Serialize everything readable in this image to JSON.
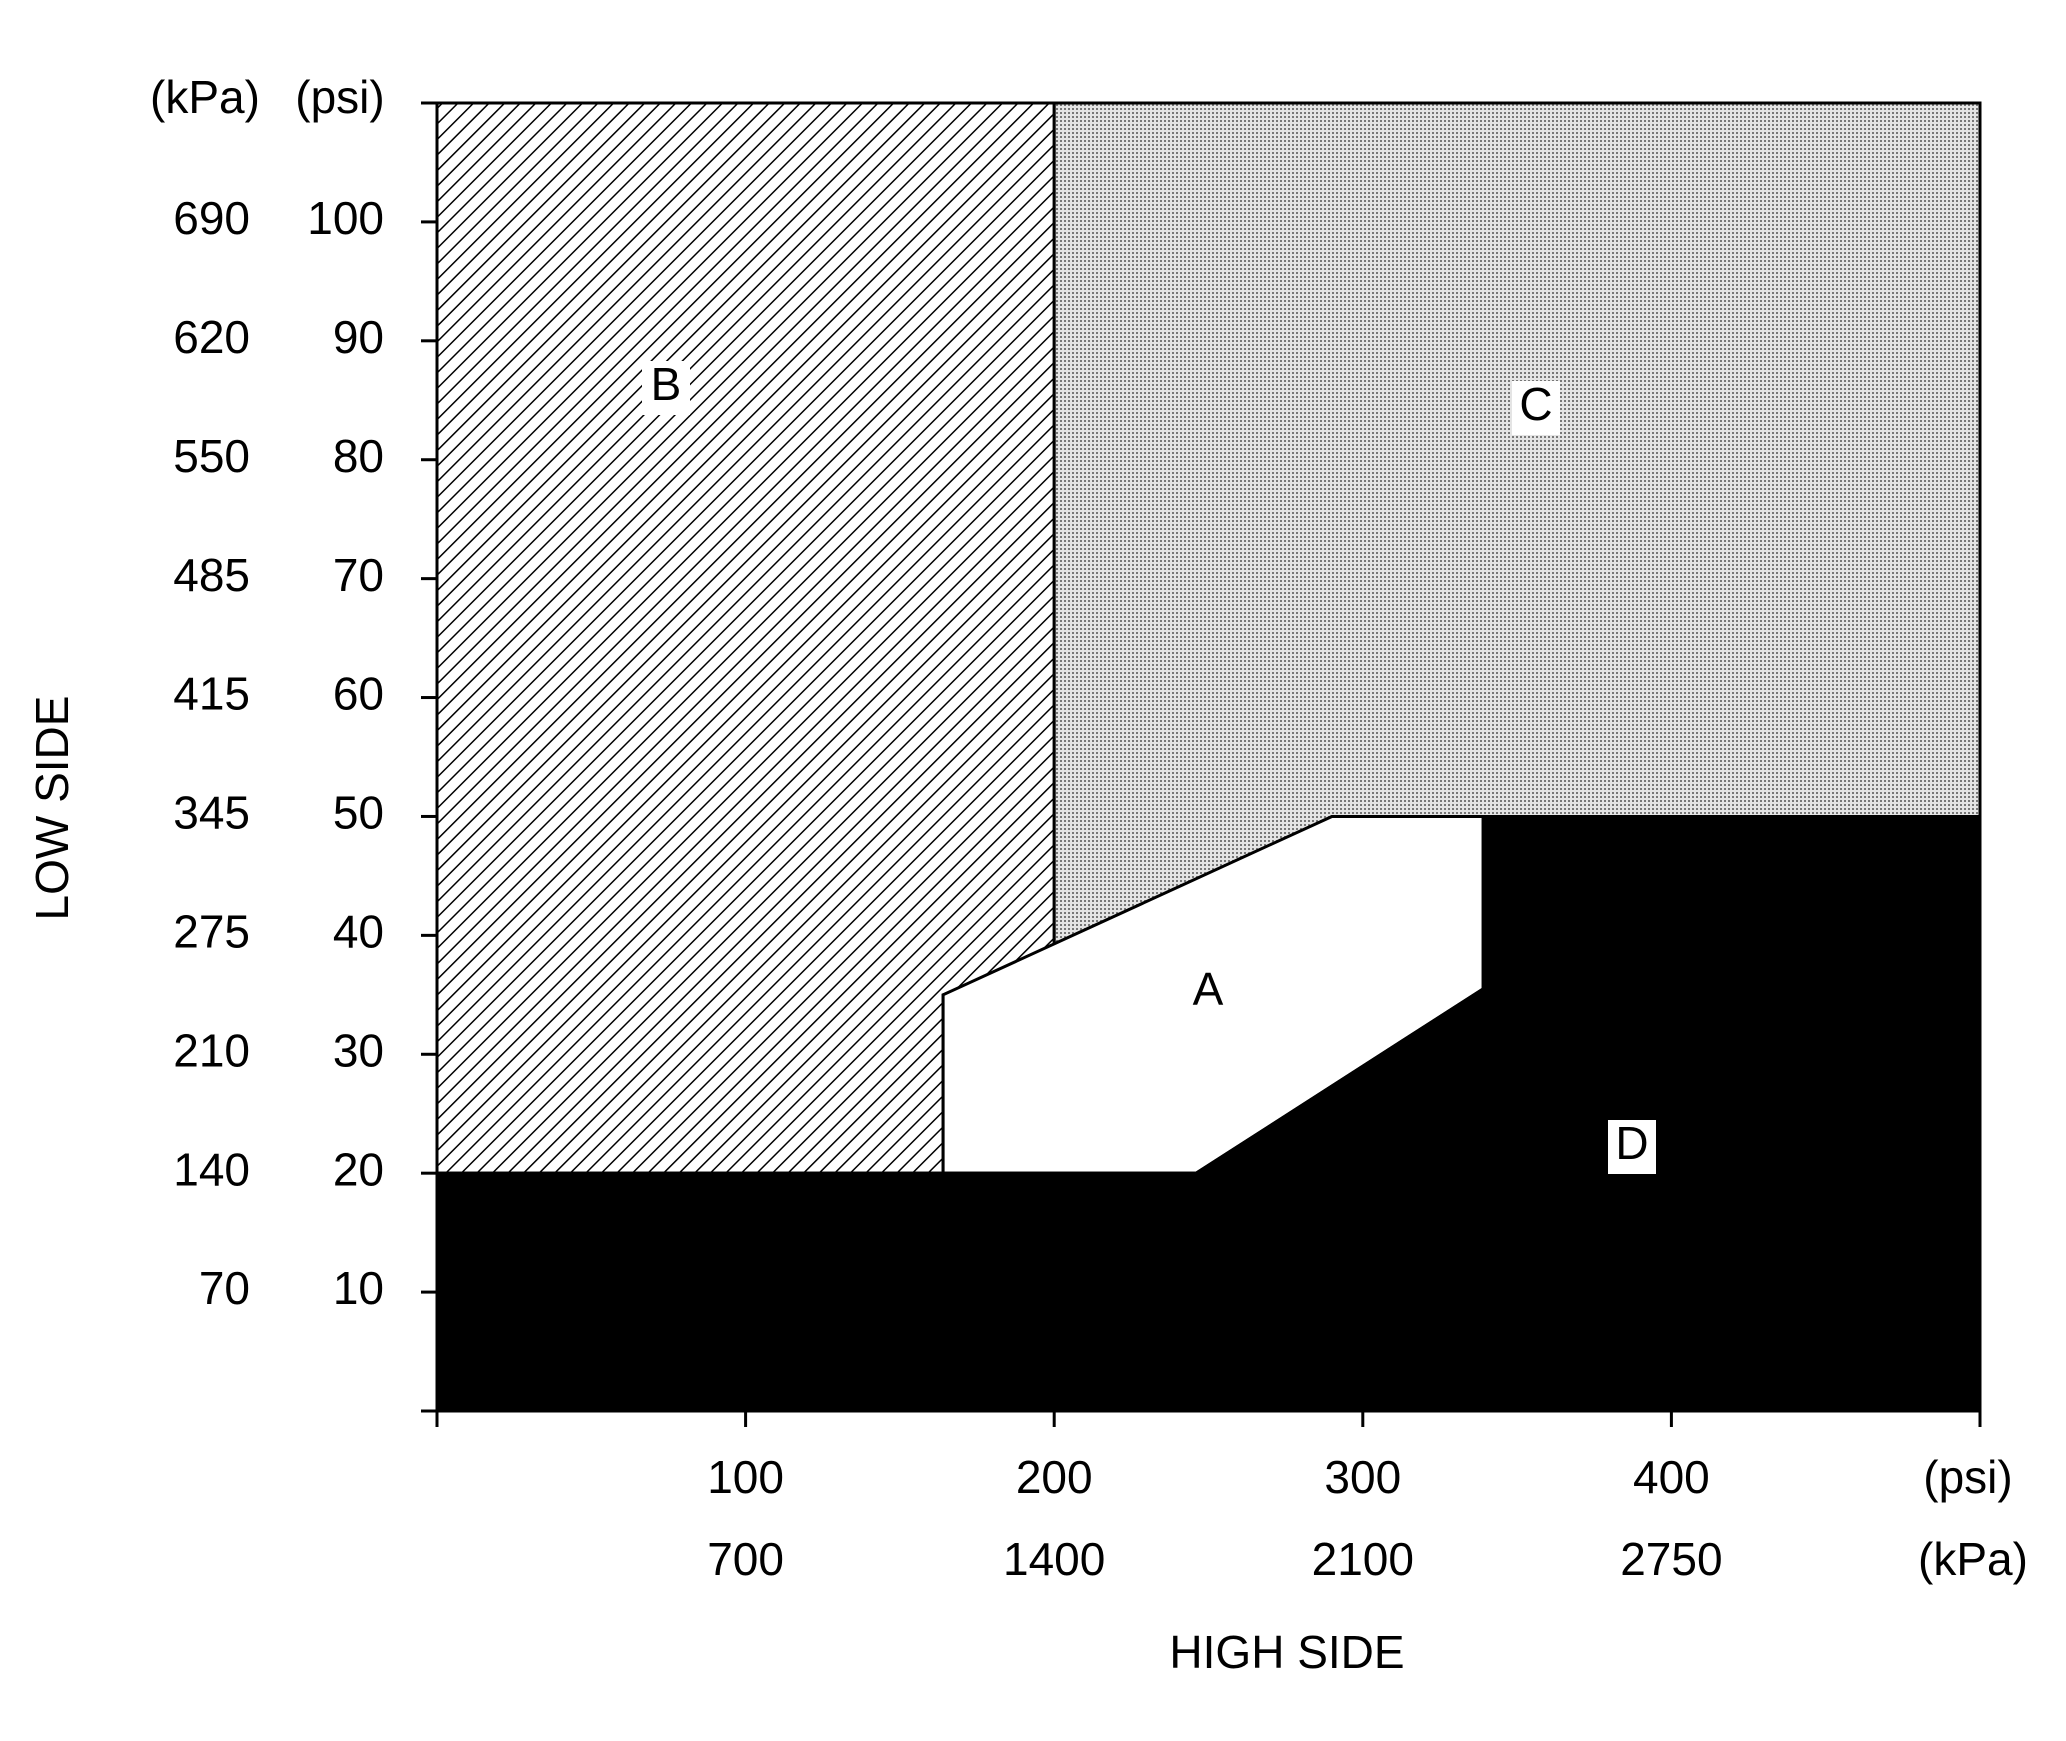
{
  "chart_data": {
    "type": "region",
    "xlabel": "HIGH SIDE",
    "ylabel": "LOW SIDE",
    "x_units": [
      "(psi)",
      "(kPa)"
    ],
    "y_units": [
      "(kPa)",
      "(psi)"
    ],
    "xlim": [
      0,
      500
    ],
    "ylim": [
      0,
      110
    ],
    "xticks": [
      100,
      200,
      300,
      400
    ],
    "xticks_kpa": [
      700,
      1400,
      2100,
      2750
    ],
    "yticks": [
      10,
      20,
      30,
      40,
      50,
      60,
      70,
      80,
      90,
      100
    ],
    "yticks_kpa": [
      70,
      140,
      210,
      275,
      345,
      415,
      485,
      550,
      620,
      690
    ],
    "regions": [
      {
        "name": "B",
        "pattern": "hatch",
        "color": "#000000",
        "x": [
          0,
          164,
          164,
          200,
          200,
          0
        ],
        "y": [
          20,
          20,
          35,
          39,
          110,
          110
        ]
      },
      {
        "name": "C",
        "pattern": "dots",
        "color": "#555555",
        "x": [
          200,
          290,
          500,
          500,
          200
        ],
        "y": [
          39,
          50,
          50,
          110,
          110
        ]
      },
      {
        "name": "A",
        "pattern": "solid",
        "color": "#ffffff",
        "x": [
          164,
          164,
          290,
          339,
          339,
          246
        ],
        "y": [
          20,
          35,
          50,
          50,
          35.5,
          20
        ]
      },
      {
        "name": "D",
        "pattern": "solid",
        "color": "#000000",
        "x": [
          0,
          500,
          500,
          339,
          339,
          246,
          0
        ],
        "y": [
          0,
          0,
          50,
          50,
          35.5,
          20,
          20
        ]
      }
    ]
  }
}
